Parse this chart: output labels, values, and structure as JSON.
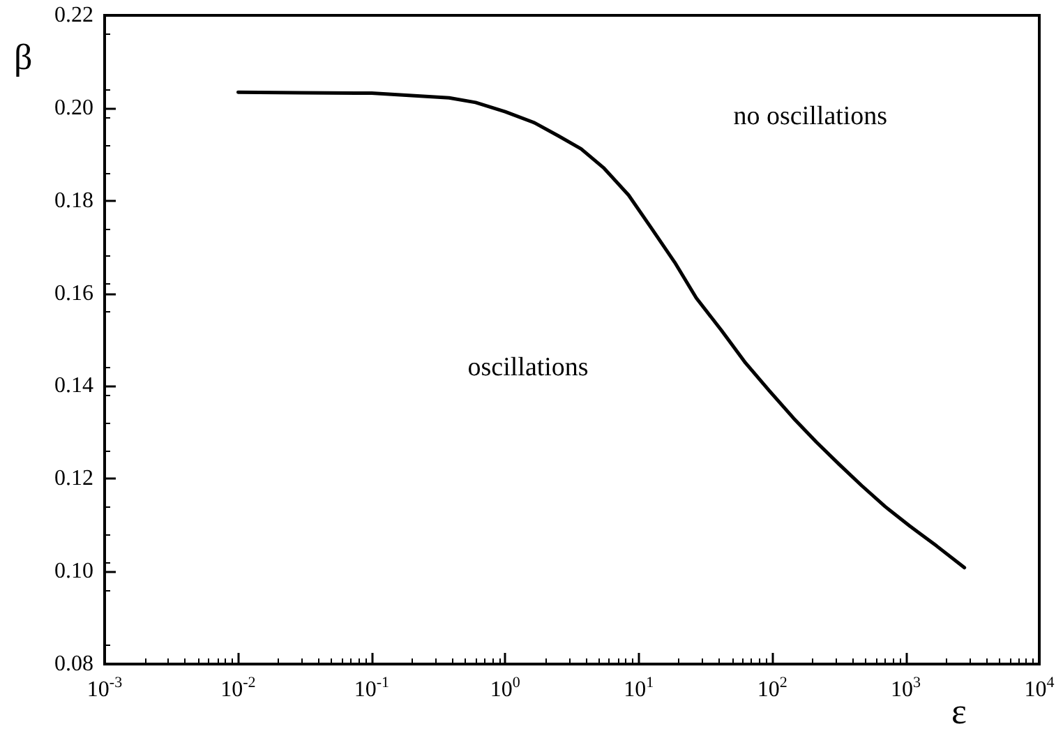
{
  "chart_data": {
    "type": "line",
    "xlabel": "ε",
    "ylabel": "β",
    "annotations": [
      "oscillations",
      "no oscillations"
    ],
    "log": "x",
    "grid": false,
    "marker": "none",
    "line_style": "solid",
    "xlim": [
      0.001,
      10000
    ],
    "xticks": [
      {
        "value": 0.001,
        "label": "10$^{-3}$"
      },
      {
        "value": 0.01,
        "label": "10$^{-2}$"
      },
      {
        "value": 0.1,
        "label": "10$^{-1}$"
      },
      {
        "value": 1,
        "label": "10$^{0}$"
      },
      {
        "value": 10,
        "label": "10$^{1}$"
      },
      {
        "value": 100,
        "label": "10$^{2}$"
      },
      {
        "value": 1000,
        "label": "10$^{3}$"
      },
      {
        "value": 10000,
        "label": "10$^{4}$"
      }
    ],
    "ylim": [
      0.08,
      0.22
    ],
    "yticks": [
      0.08,
      {
        "value": 0.1,
        "label": "0.10"
      },
      0.12,
      0.14,
      0.16,
      0.18,
      {
        "value": 0.2,
        "label": "0.20"
      },
      0.22
    ],
    "series": [
      {
        "color": "#000000",
        "x": [
          0.01,
          0.03,
          0.1,
          0.38,
          0.6,
          1,
          1.66,
          2.5,
          3.7,
          5.5,
          8.4,
          12.5,
          18.6,
          27,
          41.7,
          63,
          95,
          145,
          214,
          320,
          468,
          700,
          1070,
          1700,
          2750
        ],
        "values": [
          0.2034,
          0.2033,
          0.2032,
          0.2022,
          0.2012,
          0.1992,
          0.1968,
          0.194,
          0.1912,
          0.187,
          0.1812,
          0.174,
          0.1667,
          0.159,
          0.152,
          0.145,
          0.139,
          0.133,
          0.1279,
          0.123,
          0.1185,
          0.114,
          0.1098,
          0.1055,
          0.1008
        ]
      }
    ]
  }
}
